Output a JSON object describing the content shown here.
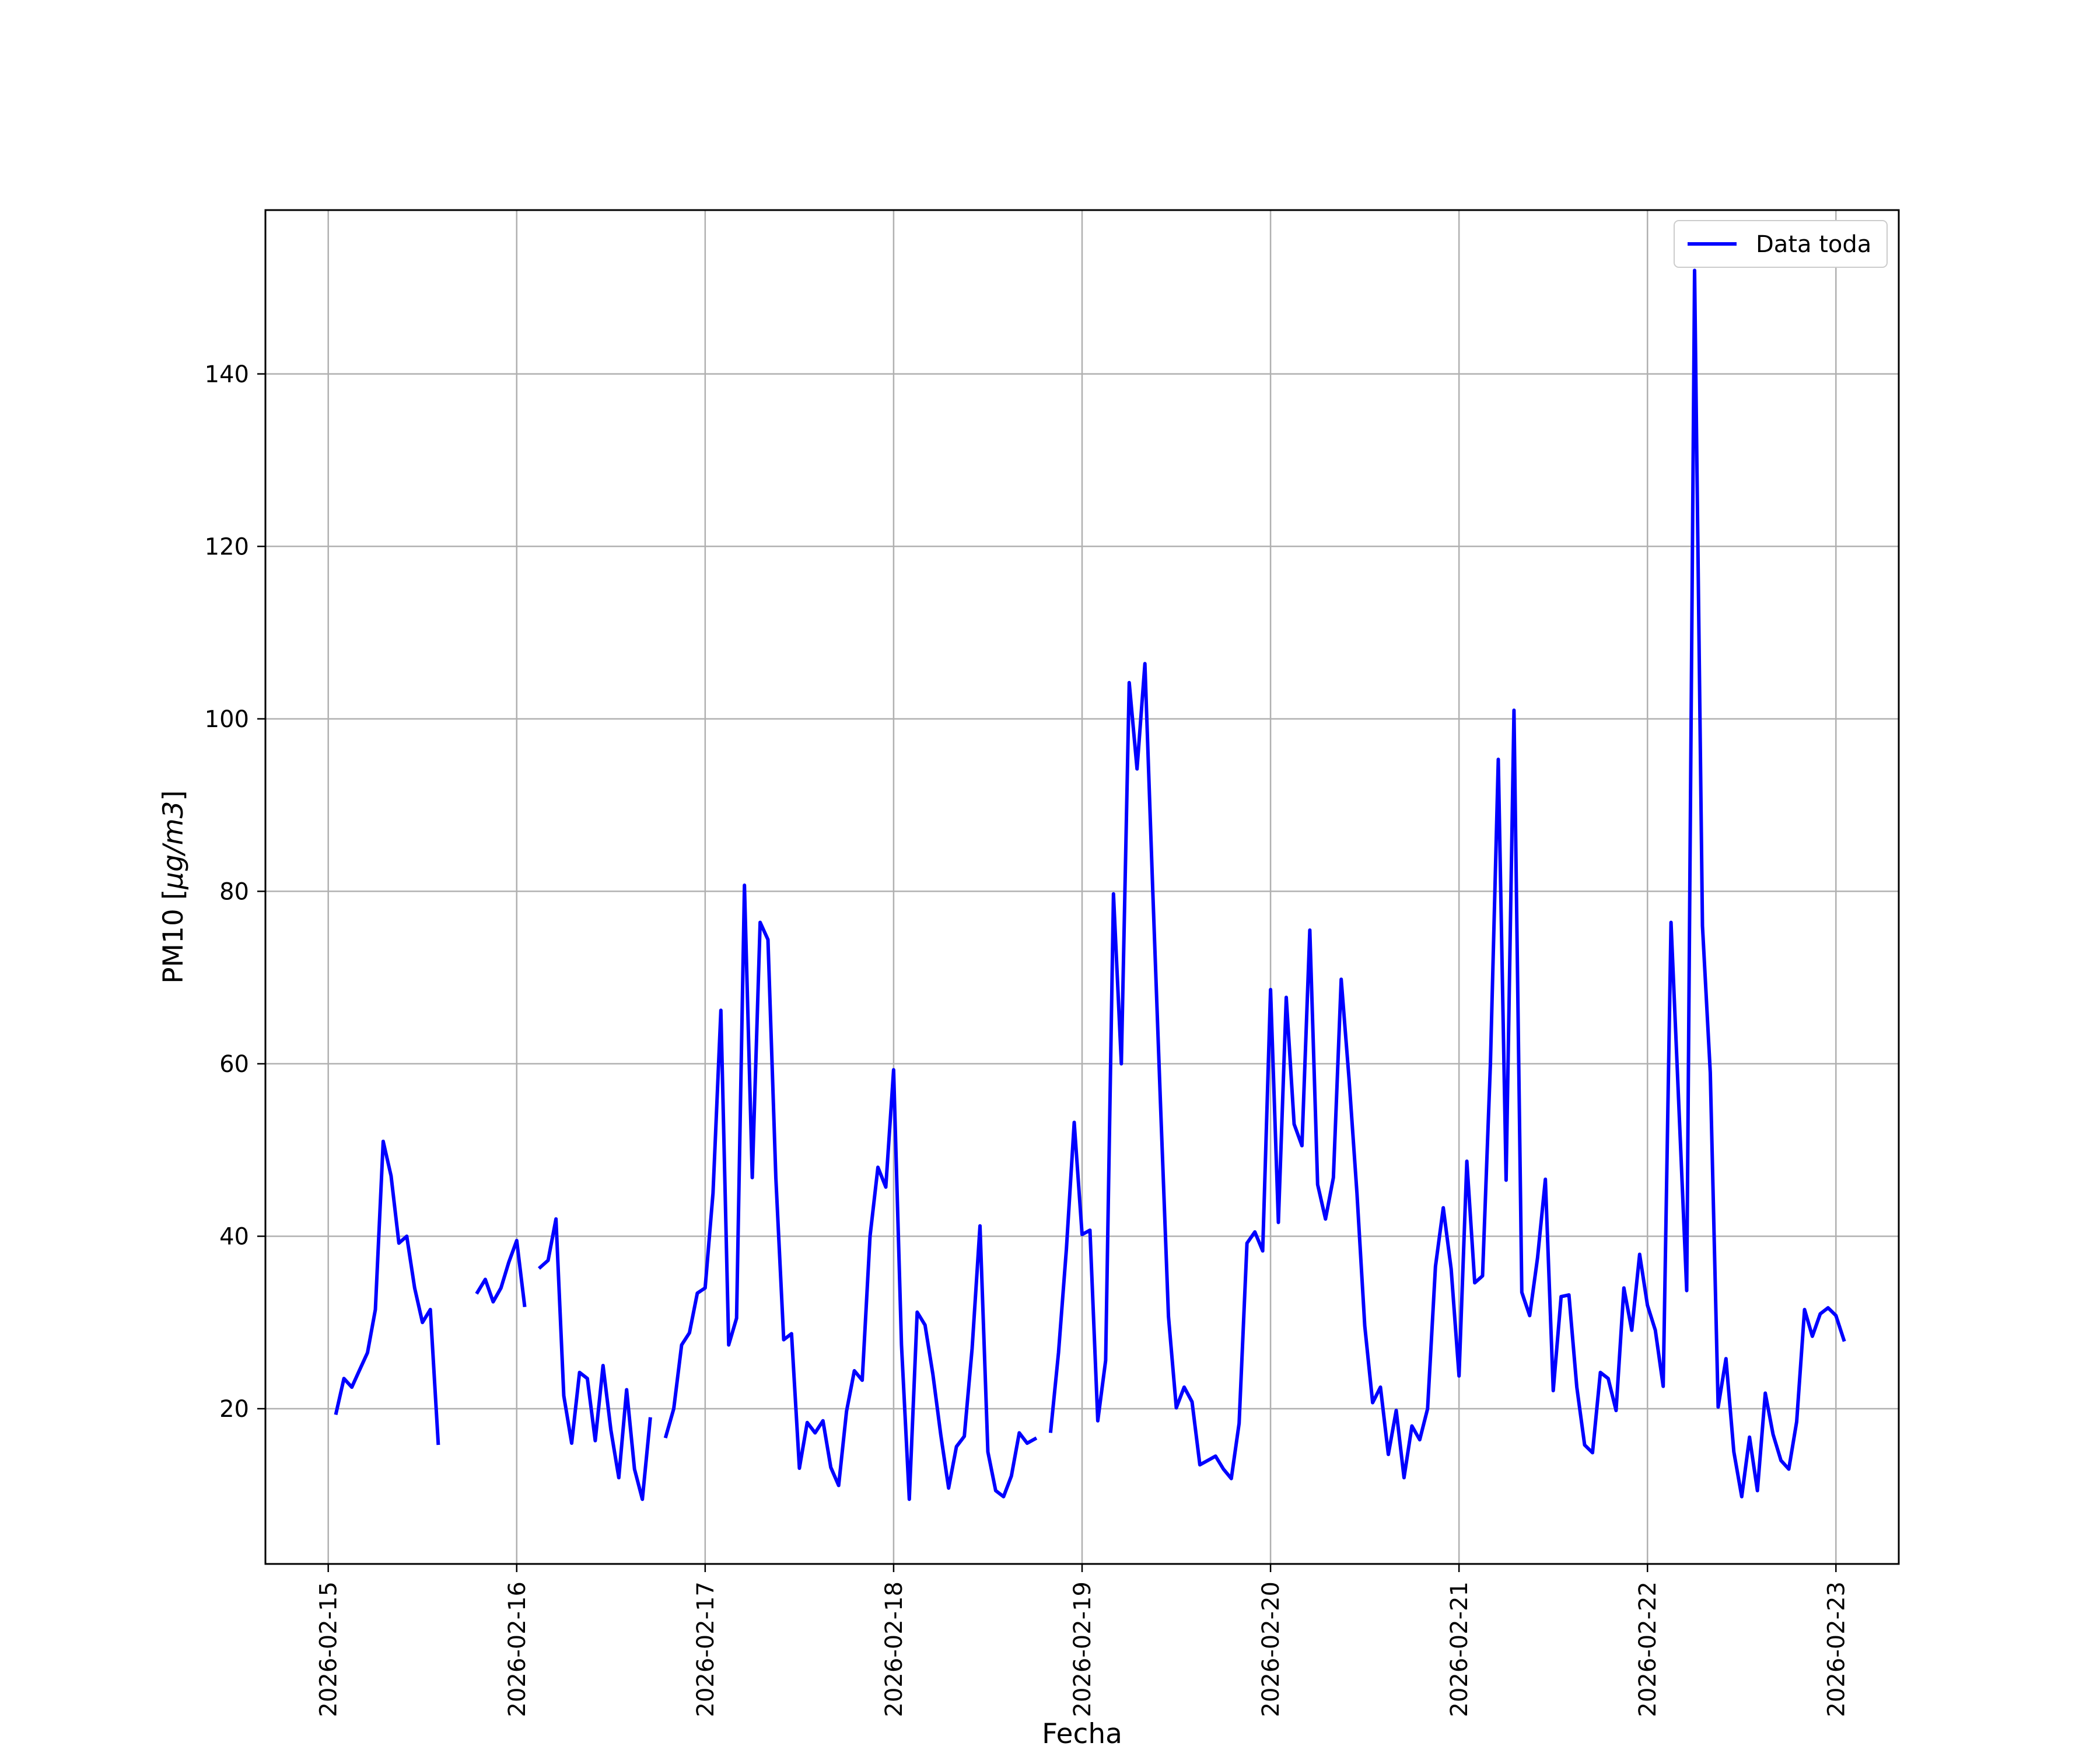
{
  "chart_data": {
    "type": "line",
    "title": "",
    "xlabel": "Fecha",
    "ylabel": "PM10 [μg/m3]",
    "ylabel_parts": {
      "prefix": "PM10 [",
      "unit": "μg/m3",
      "suffix": "]"
    },
    "x_start": "2026-02-15 00:00",
    "x_step_hours": 1,
    "xlim": [
      "2026-02-14 16:00",
      "2026-02-23 08:00"
    ],
    "ylim": [
      2,
      159
    ],
    "x_ticks": [
      "2026-02-15",
      "2026-02-16",
      "2026-02-17",
      "2026-02-18",
      "2026-02-19",
      "2026-02-20",
      "2026-02-21",
      "2026-02-22",
      "2026-02-23"
    ],
    "y_ticks": [
      20,
      40,
      60,
      80,
      100,
      120,
      140
    ],
    "grid": true,
    "legend_position": "top-right",
    "series": [
      {
        "name": "Data toda",
        "color": "#0000ff",
        "values": [
          null,
          19.5,
          23.5,
          22.5,
          24.5,
          26.5,
          31.5,
          51.0,
          47.0,
          39.2,
          40.0,
          34.0,
          30.0,
          31.5,
          16.0,
          null,
          null,
          null,
          null,
          33.5,
          35.0,
          32.4,
          34.0,
          37.0,
          39.5,
          32.0,
          null,
          36.4,
          37.2,
          42.0,
          21.5,
          16.0,
          24.2,
          23.5,
          16.3,
          25.0,
          17.5,
          12.0,
          22.2,
          13.0,
          9.5,
          18.8,
          null,
          16.8,
          20.0,
          27.4,
          28.8,
          33.4,
          34.0,
          45.0,
          66.2,
          27.4,
          30.5,
          80.7,
          46.8,
          76.4,
          74.4,
          46.8,
          28.0,
          28.7,
          13.1,
          18.4,
          17.2,
          18.6,
          13.2,
          11.1,
          19.7,
          24.4,
          23.3,
          40.0,
          48.0,
          45.7,
          59.3,
          27.4,
          9.5,
          31.2,
          29.7,
          24.0,
          17.0,
          10.8,
          15.6,
          16.8,
          27.0,
          41.2,
          15.0,
          10.5,
          9.8,
          12.2,
          17.2,
          16.0,
          16.5,
          null,
          17.4,
          26.5,
          38.5,
          53.2,
          40.2,
          40.7,
          18.6,
          25.6,
          79.7,
          60.0,
          104.2,
          94.2,
          106.4,
          80.0,
          55.0,
          30.7,
          20.1,
          22.5,
          20.8,
          13.5,
          14.0,
          14.5,
          13.0,
          11.9,
          18.3,
          39.2,
          40.5,
          38.3,
          68.6,
          41.6,
          67.7,
          53.0,
          50.5,
          75.5,
          46.0,
          42.0,
          46.8,
          69.8,
          58.2,
          45.0,
          29.6,
          20.7,
          22.5,
          14.7,
          19.8,
          12.0,
          18.0,
          16.4,
          20.0,
          36.5,
          43.3,
          36.2,
          23.8,
          48.7,
          34.6,
          35.4,
          60.0,
          95.3,
          46.5,
          101.0,
          33.5,
          30.8,
          37.5,
          46.6,
          22.1,
          33.0,
          33.2,
          22.5,
          15.8,
          14.9,
          24.2,
          23.5,
          19.8,
          34.0,
          29.1,
          37.9,
          32.0,
          29.1,
          22.6,
          76.4,
          55.0,
          33.7,
          152.0,
          76.0,
          59.0,
          20.2,
          25.8,
          15.0,
          9.8,
          16.7,
          10.5,
          21.8,
          17.0,
          14.0,
          13.0,
          18.5,
          31.5,
          28.4,
          31.0,
          31.7,
          30.8,
          28.0
        ]
      }
    ]
  }
}
